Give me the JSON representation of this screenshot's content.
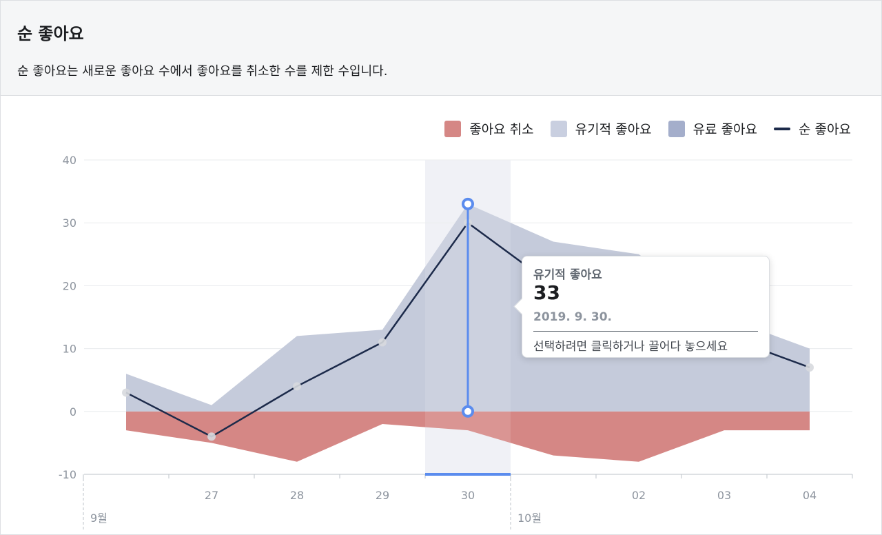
{
  "header": {
    "title": "순 좋아요",
    "description": "순 좋아요는 새로운 좋아요 수에서 좋아요를 취소한 수를 제한 수입니다."
  },
  "legend": [
    {
      "label": "좋아요 취소",
      "color": "#d58785",
      "kind": "area"
    },
    {
      "label": "유기적 좋아요",
      "color": "#c9cfe0",
      "kind": "area"
    },
    {
      "label": "유료 좋아요",
      "color": "#a4aecb",
      "kind": "area"
    },
    {
      "label": "순 좋아요",
      "color": "#1c2a4a",
      "kind": "line"
    }
  ],
  "tooltip": {
    "series": "유기적 좋아요",
    "value": "33",
    "date": "2019. 9. 30.",
    "hint": "선택하려면 클릭하거나 끌어다 놓으세요"
  },
  "chart_data": {
    "type": "area",
    "x": [
      "2019-09-26",
      "2019-09-27",
      "2019-09-28",
      "2019-09-29",
      "2019-09-30",
      "2019-10-01",
      "2019-10-02",
      "2019-10-03",
      "2019-10-04"
    ],
    "tick_labels": [
      "",
      "27",
      "28",
      "29",
      "30",
      "",
      "02",
      "03",
      "04"
    ],
    "month_labels": [
      {
        "label": "9월",
        "at": "2019-09-26"
      },
      {
        "label": "10월",
        "at": "2019-10-01"
      }
    ],
    "series": [
      {
        "name": "좋아요 취소",
        "values": [
          -3,
          -5,
          -8,
          -2,
          -3,
          -7,
          -8,
          -3,
          -3
        ],
        "color": "#d58785"
      },
      {
        "name": "유기적 좋아요",
        "values": [
          6,
          1,
          12,
          13,
          33,
          27,
          25,
          15,
          10
        ],
        "color": "#c9cfe0"
      },
      {
        "name": "유료 좋아요",
        "values": [
          0,
          0,
          0,
          0,
          0,
          0,
          0,
          0,
          0
        ],
        "color": "#a4aecb"
      },
      {
        "name": "순 좋아요",
        "values": [
          3,
          -4,
          4,
          11,
          30,
          20,
          17,
          12,
          7
        ],
        "color": "#1c2a4a"
      }
    ],
    "yticks": [
      40,
      30,
      20,
      10,
      0,
      -10
    ],
    "ylim": [
      -10,
      40
    ],
    "grid": true,
    "legend_position": "top-right",
    "selected_index": 4,
    "selected_top_value": 33,
    "selected_bottom_value": 0,
    "highlight_color": "#5b8cee"
  }
}
